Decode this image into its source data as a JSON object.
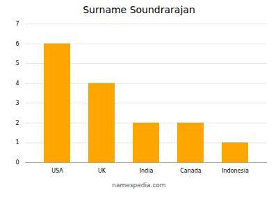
{
  "chart_data": {
    "type": "bar",
    "title": "Surname Soundrarajan",
    "categories": [
      "USA",
      "UK",
      "India",
      "Canada",
      "Indonesia"
    ],
    "values": [
      6,
      4,
      2,
      2,
      1
    ],
    "color": "#FFA500",
    "ylim": [
      0,
      7
    ],
    "yticks": [
      0,
      1,
      2,
      3,
      4,
      5,
      6,
      7
    ],
    "grid": true,
    "caption": "namespedia.com"
  }
}
